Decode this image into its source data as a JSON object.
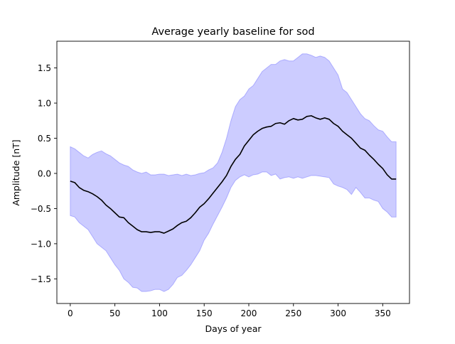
{
  "chart_data": {
    "type": "line",
    "title": "Average yearly baseline for sod",
    "xlabel": "Days of year",
    "ylabel": "Amplitude [nT]",
    "xlim": [
      -15,
      380
    ],
    "ylim": [
      -1.85,
      1.88
    ],
    "xticks": [
      0,
      50,
      100,
      150,
      200,
      250,
      300,
      350
    ],
    "xtick_labels": [
      "0",
      "50",
      "100",
      "150",
      "200",
      "250",
      "300",
      "350"
    ],
    "yticks": [
      -1.5,
      -1.0,
      -0.5,
      0.0,
      0.5,
      1.0,
      1.5
    ],
    "ytick_labels": [
      "−1.5",
      "−1.0",
      "−0.5",
      "0.0",
      "0.5",
      "1.0",
      "1.5"
    ],
    "grid": false,
    "legend": "none",
    "series": [
      {
        "kind": "line",
        "color": "#000000",
        "x": [
          0,
          5,
          10,
          15,
          20,
          25,
          30,
          35,
          40,
          45,
          50,
          55,
          60,
          65,
          70,
          75,
          80,
          85,
          90,
          95,
          100,
          105,
          110,
          115,
          120,
          125,
          130,
          135,
          140,
          145,
          150,
          155,
          160,
          165,
          170,
          175,
          180,
          185,
          190,
          195,
          200,
          205,
          210,
          215,
          220,
          225,
          230,
          235,
          240,
          245,
          250,
          255,
          260,
          265,
          270,
          275,
          280,
          285,
          290,
          295,
          300,
          305,
          310,
          315,
          320,
          325,
          330,
          335,
          340,
          345,
          350,
          355,
          360,
          365
        ],
        "y": [
          -0.11,
          -0.13,
          -0.2,
          -0.24,
          -0.26,
          -0.29,
          -0.33,
          -0.38,
          -0.45,
          -0.5,
          -0.56,
          -0.62,
          -0.63,
          -0.7,
          -0.75,
          -0.8,
          -0.83,
          -0.83,
          -0.84,
          -0.83,
          -0.83,
          -0.85,
          -0.82,
          -0.79,
          -0.74,
          -0.7,
          -0.68,
          -0.63,
          -0.56,
          -0.48,
          -0.43,
          -0.36,
          -0.28,
          -0.2,
          -0.12,
          -0.03,
          0.1,
          0.2,
          0.27,
          0.39,
          0.47,
          0.55,
          0.6,
          0.64,
          0.66,
          0.67,
          0.71,
          0.72,
          0.7,
          0.75,
          0.78,
          0.76,
          0.77,
          0.81,
          0.82,
          0.79,
          0.77,
          0.79,
          0.77,
          0.71,
          0.67,
          0.6,
          0.55,
          0.5,
          0.43,
          0.36,
          0.33,
          0.26,
          0.2,
          0.13,
          0.07,
          -0.02,
          -0.08,
          -0.08
        ]
      },
      {
        "kind": "band",
        "color": "#0000ff",
        "opacity": 0.2,
        "x": [
          0,
          5,
          10,
          15,
          20,
          25,
          30,
          35,
          40,
          45,
          50,
          55,
          60,
          65,
          70,
          75,
          80,
          85,
          90,
          95,
          100,
          105,
          110,
          115,
          120,
          125,
          130,
          135,
          140,
          145,
          150,
          155,
          160,
          165,
          170,
          175,
          180,
          185,
          190,
          195,
          200,
          205,
          210,
          215,
          220,
          225,
          230,
          235,
          240,
          245,
          250,
          255,
          260,
          265,
          270,
          275,
          280,
          285,
          290,
          295,
          300,
          305,
          310,
          315,
          320,
          325,
          330,
          335,
          340,
          345,
          350,
          355,
          360,
          365
        ],
        "upper": [
          0.38,
          0.35,
          0.3,
          0.25,
          0.22,
          0.27,
          0.3,
          0.32,
          0.28,
          0.25,
          0.2,
          0.15,
          0.12,
          0.1,
          0.05,
          0.02,
          0.0,
          0.02,
          -0.02,
          -0.02,
          -0.01,
          -0.01,
          -0.03,
          -0.02,
          -0.01,
          -0.03,
          -0.01,
          -0.03,
          -0.02,
          0.0,
          0.01,
          0.05,
          0.08,
          0.15,
          0.3,
          0.5,
          0.75,
          0.95,
          1.05,
          1.1,
          1.2,
          1.25,
          1.35,
          1.45,
          1.5,
          1.55,
          1.55,
          1.6,
          1.62,
          1.6,
          1.6,
          1.65,
          1.7,
          1.7,
          1.68,
          1.65,
          1.67,
          1.65,
          1.6,
          1.5,
          1.4,
          1.2,
          1.15,
          1.05,
          0.95,
          0.85,
          0.78,
          0.75,
          0.68,
          0.62,
          0.6,
          0.52,
          0.45,
          0.45
        ],
        "lower": [
          -0.6,
          -0.62,
          -0.7,
          -0.75,
          -0.8,
          -0.9,
          -1.0,
          -1.05,
          -1.1,
          -1.2,
          -1.3,
          -1.38,
          -1.5,
          -1.55,
          -1.62,
          -1.63,
          -1.68,
          -1.68,
          -1.67,
          -1.65,
          -1.65,
          -1.68,
          -1.65,
          -1.58,
          -1.48,
          -1.45,
          -1.38,
          -1.3,
          -1.2,
          -1.1,
          -0.95,
          -0.85,
          -0.72,
          -0.6,
          -0.48,
          -0.35,
          -0.2,
          -0.1,
          -0.05,
          -0.02,
          -0.05,
          -0.02,
          -0.01,
          0.02,
          0.02,
          -0.03,
          -0.01,
          -0.08,
          -0.06,
          -0.05,
          -0.07,
          -0.05,
          -0.07,
          -0.05,
          -0.03,
          -0.03,
          -0.04,
          -0.05,
          -0.06,
          -0.15,
          -0.18,
          -0.2,
          -0.23,
          -0.3,
          -0.2,
          -0.27,
          -0.35,
          -0.35,
          -0.38,
          -0.4,
          -0.5,
          -0.55,
          -0.62,
          -0.62
        ]
      }
    ]
  }
}
